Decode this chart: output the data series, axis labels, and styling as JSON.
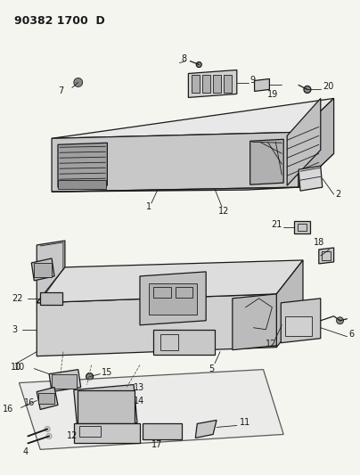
{
  "title": "90382 1700  D",
  "bg_color": "#f5f5f0",
  "line_color": "#1a1a1a",
  "figsize": [
    4.04,
    5.33
  ],
  "dpi": 100,
  "title_fs": 9,
  "label_fs": 7,
  "lw": 0.9
}
